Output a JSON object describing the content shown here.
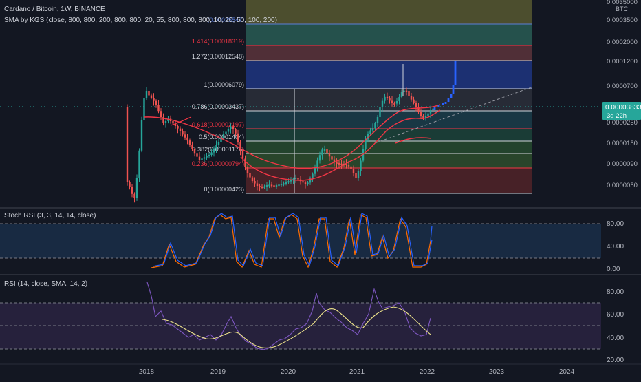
{
  "header": {
    "symbol_line": "Cardano / Bitcoin, 1W, BINANCE",
    "indicator_line": "SMA by KGS (close, 800, 800, 200, 800, 800, 20, 55, 800, 800, 800, 10, 20, 50, 100, 200)"
  },
  "price_axis": {
    "currency": "BTC",
    "labels": [
      "0.0035000",
      "0.0003500",
      "0.0002000",
      "0.0001200",
      "0.0000700",
      "0.0000250",
      "0.0000150",
      "0.0000090",
      "0.0000050"
    ],
    "current_price": "0.00003833",
    "countdown": "3d 22h"
  },
  "fib_levels": [
    {
      "label": "(0.00025547)",
      "color": "#5b7dd8"
    },
    {
      "label": "1.414(0.00018319)",
      "color": "#f23645"
    },
    {
      "label": "1.272(0.00012548)",
      "color": "#d1d4dc"
    },
    {
      "label": "1(0.00006079)",
      "color": "#d1d4dc"
    },
    {
      "label": "0.786(0.00003437)",
      "color": "#d1d4dc"
    },
    {
      "label": "0.618(0.00002197)",
      "color": "#f23645"
    },
    {
      "label": "0.5(0.00001404)",
      "color": "#d1d4dc"
    },
    {
      "label": "0.382(0.00001176)",
      "color": "#d1d4dc"
    },
    {
      "label": "0.236(0.00000794)",
      "color": "#f23645"
    },
    {
      "label": "0(0.00000423)",
      "color": "#d1d4dc"
    }
  ],
  "stoch_rsi": {
    "title": "Stoch RSI (3, 3, 14, 14, close)",
    "labels": [
      "80.00",
      "40.00",
      "0.00"
    ]
  },
  "rsi": {
    "title": "RSI (14, close, SMA, 14, 2)",
    "labels": [
      "80.00",
      "60.00",
      "40.00",
      "20.00"
    ]
  },
  "time_axis": [
    "2018",
    "2019",
    "2020",
    "2021",
    "2022",
    "2023",
    "2024"
  ],
  "colors": {
    "background": "#131722",
    "up_candle": "#26a69a",
    "down_candle": "#ef5350",
    "projection": "#2962ff",
    "sma_red": "#f23645",
    "stoch_k": "#2962ff",
    "stoch_d": "#ff6d00",
    "rsi_line": "#7e57c2",
    "rsi_ma": "#f0e68c",
    "price_tag": "#26a69a"
  }
}
